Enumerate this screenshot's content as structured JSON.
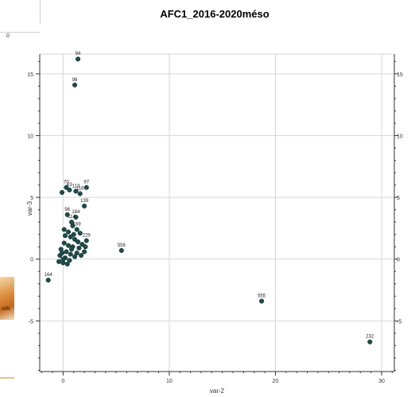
{
  "chart_data": {
    "type": "scatter",
    "title": "AFC1_2016-2020méso",
    "xlabel": "var-2",
    "ylabel": "var-3",
    "xlim": [
      -2.2,
      31.2
    ],
    "ylim": [
      -9.1,
      16.6
    ],
    "xticks": [
      0,
      10,
      20,
      30
    ],
    "yticks": [
      -5,
      0,
      5,
      10,
      15
    ],
    "grid": true,
    "marker_color": "#1f4d4a",
    "points": [
      {
        "x": 1.4,
        "y": 16.2,
        "label": "94"
      },
      {
        "x": 1.1,
        "y": 14.1,
        "label": "98"
      },
      {
        "x": 0.3,
        "y": 5.8,
        "label": "70"
      },
      {
        "x": 0.6,
        "y": 5.6,
        "label": "63"
      },
      {
        "x": 1.2,
        "y": 5.5,
        "label": "113"
      },
      {
        "x": 1.6,
        "y": 5.3,
        "label": "116"
      },
      {
        "x": 2.2,
        "y": 5.8,
        "label": "97"
      },
      {
        "x": 2.0,
        "y": 4.3,
        "label": "139"
      },
      {
        "x": 0.4,
        "y": 3.6,
        "label": "96"
      },
      {
        "x": 1.2,
        "y": 3.4,
        "label": "184"
      },
      {
        "x": 0.8,
        "y": 3.0,
        "label": "114"
      },
      {
        "x": 1.3,
        "y": 2.4,
        "label": "169"
      },
      {
        "x": 2.2,
        "y": 1.5,
        "label": "229"
      },
      {
        "x": 5.5,
        "y": 0.7,
        "label": "556"
      },
      {
        "x": -1.4,
        "y": -1.7,
        "label": "164"
      },
      {
        "x": 18.7,
        "y": -3.4,
        "label": "555"
      },
      {
        "x": 28.9,
        "y": -6.7,
        "label": "232"
      },
      {
        "x": -0.1,
        "y": 5.4,
        "label": ""
      },
      {
        "x": 0.9,
        "y": 2.7,
        "label": ""
      },
      {
        "x": 1.6,
        "y": 2.1,
        "label": ""
      },
      {
        "x": 0.2,
        "y": 1.9,
        "label": ""
      },
      {
        "x": 0.7,
        "y": 1.8,
        "label": ""
      },
      {
        "x": 1.1,
        "y": 1.6,
        "label": ""
      },
      {
        "x": 1.8,
        "y": 1.2,
        "label": ""
      },
      {
        "x": 1.5,
        "y": 0.9,
        "label": ""
      },
      {
        "x": 2.0,
        "y": 0.6,
        "label": ""
      },
      {
        "x": 0.1,
        "y": 1.3,
        "label": ""
      },
      {
        "x": 0.5,
        "y": 1.1,
        "label": ""
      },
      {
        "x": 0.9,
        "y": 1.0,
        "label": ""
      },
      {
        "x": 1.3,
        "y": 0.5,
        "label": ""
      },
      {
        "x": -0.2,
        "y": 0.8,
        "label": ""
      },
      {
        "x": 0.3,
        "y": 0.6,
        "label": ""
      },
      {
        "x": 0.7,
        "y": 0.4,
        "label": ""
      },
      {
        "x": 1.1,
        "y": 0.2,
        "label": ""
      },
      {
        "x": -0.3,
        "y": 0.3,
        "label": ""
      },
      {
        "x": 0.2,
        "y": 0.1,
        "label": ""
      },
      {
        "x": 0.6,
        "y": -0.1,
        "label": ""
      },
      {
        "x": -0.4,
        "y": -0.2,
        "label": ""
      },
      {
        "x": 0.0,
        "y": -0.3,
        "label": ""
      },
      {
        "x": 0.4,
        "y": -0.4,
        "label": ""
      },
      {
        "x": -0.1,
        "y": 0.5,
        "label": ""
      },
      {
        "x": 0.8,
        "y": 0.8,
        "label": ""
      },
      {
        "x": 1.4,
        "y": 1.4,
        "label": ""
      },
      {
        "x": 0.1,
        "y": 2.4,
        "label": ""
      },
      {
        "x": 0.5,
        "y": 2.2,
        "label": ""
      },
      {
        "x": 1.0,
        "y": 2.0,
        "label": ""
      },
      {
        "x": 0.0,
        "y": 0.0,
        "label": ""
      },
      {
        "x": 1.7,
        "y": 0.3,
        "label": ""
      },
      {
        "x": 2.1,
        "y": 1.0,
        "label": ""
      }
    ]
  },
  "background": {
    "left_window_tick": "0",
    "logo_text": "ARI"
  }
}
